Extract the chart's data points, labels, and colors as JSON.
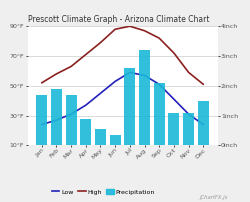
{
  "title": "Prescott Climate Graph - Arizona Climate Chart",
  "months": [
    "Jan",
    "Feb",
    "Mar",
    "Apr",
    "May",
    "Jun",
    "Jul",
    "Aug",
    "Sep",
    "Oct",
    "Nov",
    "Dec"
  ],
  "high_temp": [
    52,
    58,
    63,
    71,
    79,
    88,
    90,
    87,
    82,
    72,
    59,
    51
  ],
  "low_temp": [
    24,
    27,
    31,
    37,
    45,
    53,
    59,
    57,
    51,
    41,
    31,
    24
  ],
  "precipitation": [
    1.7,
    1.9,
    1.7,
    0.9,
    0.55,
    0.35,
    2.6,
    3.2,
    2.1,
    1.1,
    1.1,
    1.5
  ],
  "bar_color": "#1BB8D8",
  "high_color": "#8B2020",
  "low_color": "#2222BB",
  "bg_color": "#EFEFEF",
  "plot_bg": "#FFFFFF",
  "ylim_temp": [
    10,
    90
  ],
  "ylim_precip": [
    0,
    4
  ],
  "yticks_temp": [
    10,
    30,
    50,
    70,
    90
  ],
  "yticks_precip": [
    0,
    1,
    2,
    3,
    4
  ],
  "title_fontsize": 5.5,
  "tick_fontsize": 4.5,
  "legend_fontsize": 4.5
}
